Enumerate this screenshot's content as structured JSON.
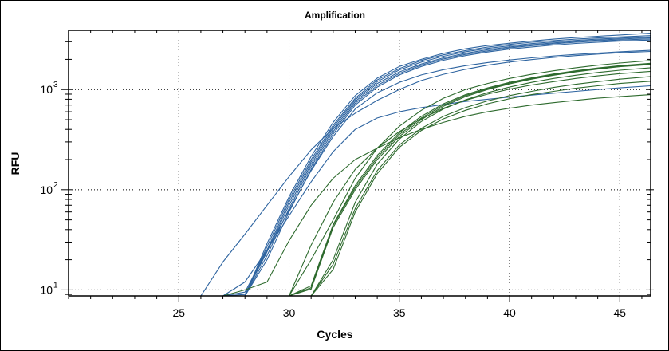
{
  "chart_data": {
    "type": "line",
    "title": "Amplification",
    "xlabel": "Cycles",
    "ylabel": "RFU",
    "yscale": "log",
    "xlim": [
      20,
      46.4
    ],
    "ylim": [
      8.7,
      3900
    ],
    "xticks": [
      25,
      30,
      35,
      40,
      45
    ],
    "xtick_labels": [
      "25",
      "30",
      "35",
      "40",
      "45"
    ],
    "yticks": [
      10,
      100,
      1000
    ],
    "ytick_labels": [
      {
        "base": "10",
        "exp": "1"
      },
      {
        "base": "10",
        "exp": "2"
      },
      {
        "base": "10",
        "exp": "3"
      }
    ],
    "grid": true,
    "legend": "none",
    "colors": {
      "blue": "#2e64a0",
      "green": "#2d6a2d"
    },
    "x": [
      20,
      21,
      22,
      23,
      24,
      25,
      26,
      27,
      28,
      29,
      30,
      31,
      32,
      33,
      34,
      35,
      36,
      37,
      38,
      39,
      40,
      41,
      42,
      43,
      44,
      45,
      46.4
    ],
    "series": [
      {
        "name": "blue-1",
        "color": "blue",
        "values": [
          8.7,
          8.7,
          8.7,
          8.7,
          8.7,
          8.7,
          8.7,
          8.7,
          8.7,
          29,
          85,
          215,
          470,
          870,
          1300,
          1700,
          2000,
          2300,
          2550,
          2750,
          2900,
          3050,
          3180,
          3300,
          3400,
          3500,
          3650
        ]
      },
      {
        "name": "blue-2",
        "color": "blue",
        "values": [
          8.7,
          8.7,
          8.7,
          8.7,
          8.7,
          8.7,
          8.7,
          8.7,
          8.7,
          27,
          80,
          200,
          440,
          820,
          1250,
          1620,
          1950,
          2220,
          2450,
          2650,
          2820,
          2960,
          3080,
          3180,
          3270,
          3350,
          3450
        ]
      },
      {
        "name": "blue-3",
        "color": "blue",
        "values": [
          8.7,
          8.7,
          8.7,
          8.7,
          8.7,
          8.7,
          8.7,
          8.7,
          8.7,
          25,
          75,
          190,
          420,
          790,
          1200,
          1570,
          1880,
          2150,
          2380,
          2570,
          2730,
          2870,
          2990,
          3090,
          3180,
          3260,
          3350
        ]
      },
      {
        "name": "blue-4",
        "color": "blue",
        "values": [
          8.7,
          8.7,
          8.7,
          8.7,
          8.7,
          8.7,
          8.7,
          8.7,
          9,
          24,
          70,
          180,
          400,
          760,
          1150,
          1500,
          1800,
          2070,
          2300,
          2500,
          2660,
          2800,
          2920,
          3020,
          3110,
          3190,
          3280
        ]
      },
      {
        "name": "blue-5",
        "color": "blue",
        "values": [
          8.7,
          8.7,
          8.7,
          8.7,
          8.7,
          8.7,
          8.7,
          8.7,
          8.7,
          22,
          65,
          170,
          380,
          730,
          1100,
          1450,
          1750,
          2020,
          2240,
          2430,
          2600,
          2740,
          2860,
          2960,
          3050,
          3120,
          3200
        ]
      },
      {
        "name": "blue-6",
        "color": "blue",
        "values": [
          8.7,
          8.7,
          8.7,
          8.7,
          8.7,
          8.7,
          8.7,
          8.7,
          8.7,
          20,
          60,
          160,
          360,
          700,
          1060,
          1400,
          1700,
          1960,
          2180,
          2370,
          2530,
          2660,
          2780,
          2880,
          2970,
          3040,
          3120
        ]
      },
      {
        "name": "blue-7",
        "color": "blue",
        "values": [
          8.7,
          8.7,
          8.7,
          8.7,
          8.7,
          8.7,
          8.7,
          8.7,
          9.5,
          25,
          62,
          155,
          340,
          640,
          930,
          1180,
          1400,
          1580,
          1730,
          1860,
          1970,
          2070,
          2160,
          2240,
          2310,
          2380,
          2460
        ]
      },
      {
        "name": "blue-8",
        "color": "blue",
        "values": [
          8.7,
          8.7,
          8.7,
          8.7,
          8.7,
          8.7,
          8.7,
          8.7,
          12,
          25,
          55,
          120,
          240,
          400,
          520,
          600,
          660,
          710,
          760,
          800,
          840,
          880,
          920,
          960,
          1000,
          1040,
          1090
        ]
      },
      {
        "name": "blue-9",
        "color": "blue",
        "values": [
          8.7,
          8.7,
          8.7,
          8.7,
          8.7,
          8.7,
          8.7,
          19,
          36,
          70,
          135,
          250,
          410,
          580,
          780,
          1000,
          1230,
          1420,
          1590,
          1750,
          1880,
          1990,
          2090,
          2180,
          2260,
          2330,
          2400
        ]
      },
      {
        "name": "green-1",
        "color": "green",
        "values": [
          8.7,
          8.7,
          8.7,
          8.7,
          8.7,
          8.7,
          8.7,
          8.7,
          8.7,
          8.7,
          8.7,
          20,
          50,
          130,
          260,
          430,
          620,
          820,
          1000,
          1150,
          1290,
          1420,
          1540,
          1650,
          1750,
          1840,
          1950
        ]
      },
      {
        "name": "green-2",
        "color": "green",
        "values": [
          8.7,
          8.7,
          8.7,
          8.7,
          8.7,
          8.7,
          8.7,
          8.7,
          8.7,
          8.7,
          8.7,
          11,
          45,
          110,
          220,
          370,
          540,
          720,
          890,
          1040,
          1180,
          1310,
          1430,
          1540,
          1640,
          1730,
          1830
        ]
      },
      {
        "name": "green-3",
        "color": "green",
        "values": [
          8.7,
          8.7,
          8.7,
          8.7,
          8.7,
          8.7,
          8.7,
          8.7,
          8.7,
          8.7,
          8.7,
          10.5,
          44,
          105,
          210,
          355,
          520,
          700,
          870,
          1020,
          1160,
          1290,
          1410,
          1520,
          1620,
          1710,
          1800
        ]
      },
      {
        "name": "green-4",
        "color": "green",
        "values": [
          8.7,
          8.7,
          8.7,
          8.7,
          8.7,
          8.7,
          8.7,
          8.7,
          8.7,
          8.7,
          8.7,
          10.2,
          42,
          100,
          200,
          340,
          500,
          680,
          850,
          1000,
          1140,
          1270,
          1390,
          1500,
          1600,
          1690,
          1780
        ]
      },
      {
        "name": "green-5",
        "color": "green",
        "values": [
          8.7,
          8.7,
          8.7,
          8.7,
          8.7,
          8.7,
          8.7,
          8.7,
          8.7,
          8.7,
          8.7,
          8.7,
          20,
          75,
          180,
          320,
          480,
          640,
          790,
          930,
          1060,
          1180,
          1290,
          1390,
          1480,
          1560,
          1650
        ]
      },
      {
        "name": "green-6",
        "color": "green",
        "values": [
          8.7,
          8.7,
          8.7,
          8.7,
          8.7,
          8.7,
          8.7,
          8.7,
          8.7,
          8.7,
          8.7,
          8.7,
          18,
          65,
          155,
          280,
          410,
          540,
          660,
          770,
          870,
          960,
          1050,
          1130,
          1200,
          1270,
          1350
        ]
      },
      {
        "name": "green-7",
        "color": "green",
        "values": [
          8.7,
          8.7,
          8.7,
          8.7,
          8.7,
          8.7,
          8.7,
          8.7,
          8.7,
          8.7,
          8.7,
          8.7,
          16,
          60,
          145,
          265,
          390,
          510,
          620,
          720,
          810,
          890,
          960,
          1030,
          1090,
          1150,
          1210
        ]
      },
      {
        "name": "green-8",
        "color": "green",
        "values": [
          8.7,
          8.7,
          8.7,
          8.7,
          8.7,
          8.7,
          8.7,
          8.7,
          10,
          12,
          31,
          70,
          130,
          200,
          260,
          330,
          400,
          470,
          540,
          600,
          650,
          700,
          740,
          780,
          820,
          850,
          890
        ]
      },
      {
        "name": "green-9",
        "color": "green",
        "values": [
          8.7,
          8.7,
          8.7,
          8.7,
          8.7,
          8.7,
          8.7,
          8.7,
          8.7,
          8.7,
          8.7,
          28,
          75,
          160,
          260,
          380,
          510,
          650,
          780,
          900,
          1010,
          1110,
          1200,
          1290,
          1370,
          1440,
          1520
        ]
      }
    ]
  }
}
